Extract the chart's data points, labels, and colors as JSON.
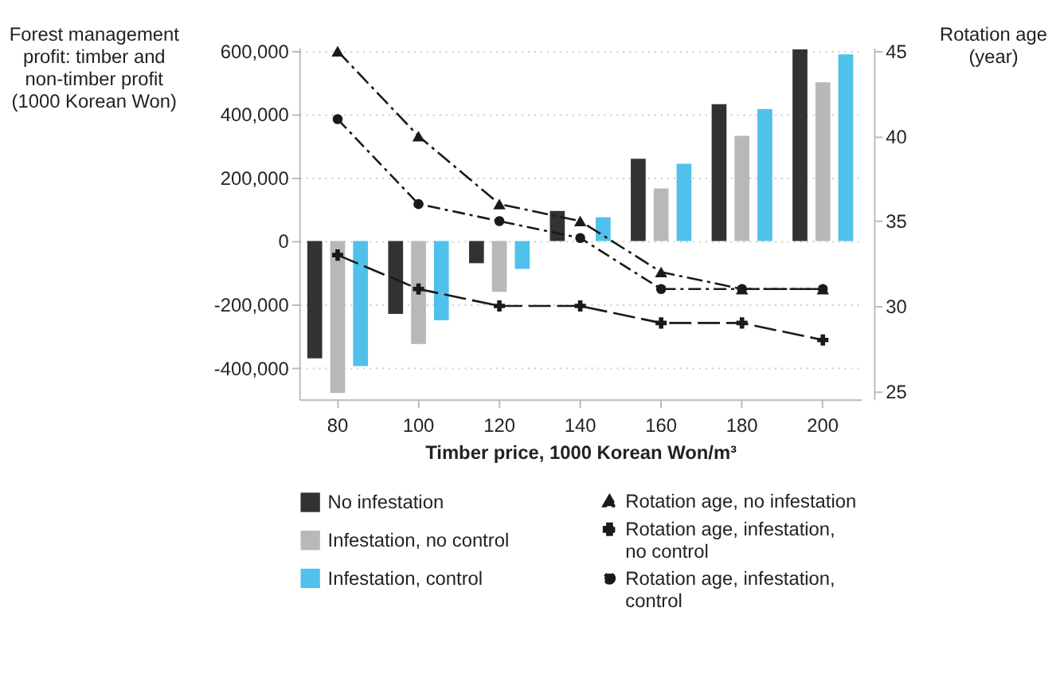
{
  "chart_data": {
    "type": "bar",
    "xlabel": "Timber price, 1000 Korean Won/m³",
    "ylabel": "Forest management profit: timber and non-timber profit (1000 Korean Won)",
    "y2label": "Rotation age (year)",
    "categories": [
      "80",
      "100",
      "120",
      "140",
      "160",
      "180",
      "200"
    ],
    "series": [
      {
        "name": "No infestation",
        "type": "bar",
        "color": "#333230",
        "values": [
          -370000,
          -230000,
          -70000,
          95000,
          260000,
          432000,
          605000
        ]
      },
      {
        "name": "Infestation, no control",
        "type": "bar",
        "color": "#b8b8b8",
        "values": [
          -480000,
          -325000,
          -160000,
          0,
          166000,
          332000,
          501000
        ]
      },
      {
        "name": "Infestation, control",
        "type": "bar",
        "color": "#4fc1eb",
        "values": [
          -395000,
          -250000,
          -88000,
          75000,
          244000,
          416000,
          589000
        ]
      },
      {
        "name": "Rotation age, no infestation",
        "type": "line",
        "axis": "y2",
        "color": "#1a1a1a",
        "marker": "triangle",
        "line_style": "dashed",
        "values": [
          45,
          40,
          36,
          35,
          32,
          31,
          31
        ]
      },
      {
        "name": "Rotation age, infestation, no control",
        "type": "line",
        "axis": "y2",
        "color": "#1a1a1a",
        "marker": "cross",
        "line_style": "dashed",
        "values": [
          33,
          31,
          30,
          30,
          29,
          29,
          28
        ]
      },
      {
        "name": "Rotation age, infestation, control",
        "type": "line",
        "axis": "y2",
        "color": "#1a1a1a",
        "marker": "circle",
        "line_style": "dashed",
        "values": [
          41,
          36,
          35,
          34,
          31,
          31,
          31
        ]
      }
    ],
    "ylim": [
      -500000,
      610000
    ],
    "yticks": [
      {
        "value": -400000,
        "label": "-400,000"
      },
      {
        "value": -200000,
        "label": "-200,000"
      },
      0,
      {
        "value": 200000,
        "label": "200,000"
      },
      {
        "value": 400000,
        "label": "400,000"
      },
      {
        "value": 600000,
        "label": "600,000"
      }
    ],
    "y2lim": [
      24.5,
      45.2
    ],
    "y2ticks": [
      25,
      30,
      35,
      40,
      45
    ],
    "grid": "y",
    "legend": "bottom"
  }
}
